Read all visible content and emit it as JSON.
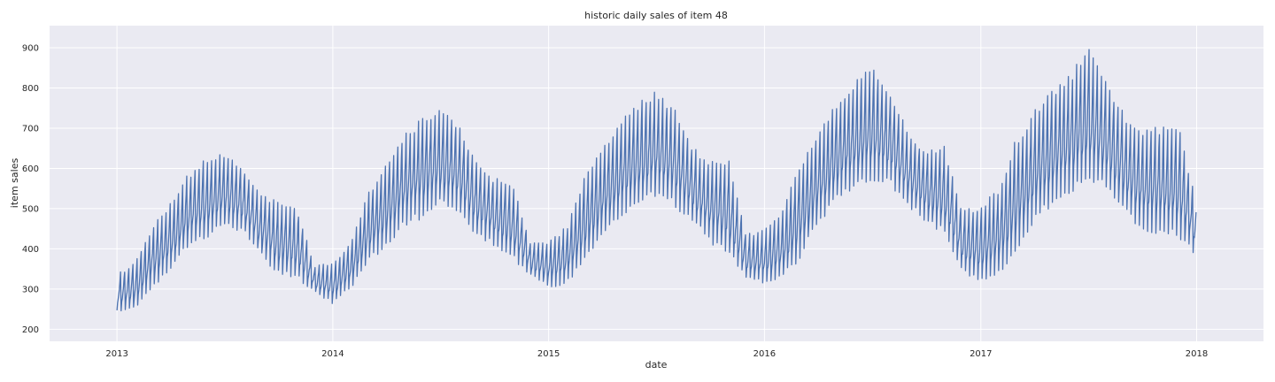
{
  "chart_data": {
    "type": "line",
    "title": "historic daily sales of item 48",
    "xlabel": "date",
    "ylabel": "item sales",
    "xlim": [
      "2012-09-09",
      "2018-04-24"
    ],
    "ylim": [
      170,
      955
    ],
    "x_ticks": [
      "2013",
      "2014",
      "2015",
      "2016",
      "2017",
      "2018"
    ],
    "y_ticks": [
      200,
      300,
      400,
      500,
      600,
      700,
      800,
      900
    ],
    "grid": true,
    "legend": "none",
    "series": [
      {
        "color": "#4c72b0",
        "x_start": "2013-01-01",
        "x_end": "2017-12-31",
        "frequency": "daily",
        "weekly_envelope": {
          "dates": [
            "2013-01-01",
            "2013-02-01",
            "2013-03-01",
            "2013-04-01",
            "2013-05-01",
            "2013-06-01",
            "2013-07-01",
            "2013-08-01",
            "2013-09-01",
            "2013-10-01",
            "2013-11-01",
            "2013-12-01",
            "2014-01-01",
            "2014-02-01",
            "2014-03-01",
            "2014-04-01",
            "2014-05-01",
            "2014-06-01",
            "2014-07-01",
            "2014-08-01",
            "2014-09-01",
            "2014-10-01",
            "2014-11-01",
            "2014-12-01",
            "2015-01-01",
            "2015-02-01",
            "2015-03-01",
            "2015-04-01",
            "2015-05-01",
            "2015-06-01",
            "2015-07-01",
            "2015-08-01",
            "2015-09-01",
            "2015-10-01",
            "2015-11-01",
            "2015-12-01",
            "2016-01-01",
            "2016-02-01",
            "2016-03-01",
            "2016-04-01",
            "2016-05-01",
            "2016-06-01",
            "2016-07-01",
            "2016-08-01",
            "2016-09-01",
            "2016-10-01",
            "2016-11-01",
            "2016-12-01",
            "2017-01-01",
            "2017-02-01",
            "2017-03-01",
            "2017-04-01",
            "2017-05-01",
            "2017-06-01",
            "2017-07-01",
            "2017-08-01",
            "2017-09-01",
            "2017-10-01",
            "2017-12-01",
            "2017-12-31"
          ],
          "low": [
            240,
            250,
            300,
            340,
            400,
            420,
            450,
            440,
            380,
            330,
            320,
            290,
            260,
            300,
            360,
            400,
            450,
            470,
            500,
            480,
            430,
            400,
            370,
            330,
            300,
            310,
            360,
            420,
            470,
            500,
            520,
            500,
            460,
            410,
            380,
            320,
            310,
            320,
            370,
            450,
            510,
            540,
            560,
            550,
            500,
            460,
            430,
            340,
            310,
            330,
            380,
            460,
            500,
            530,
            560,
            540,
            480,
            440,
            420,
            380
          ],
          "high": [
            340,
            370,
            460,
            520,
            590,
            630,
            640,
            610,
            540,
            520,
            510,
            360,
            370,
            420,
            540,
            620,
            690,
            730,
            760,
            720,
            620,
            580,
            570,
            420,
            420,
            460,
            580,
            660,
            720,
            770,
            800,
            760,
            660,
            620,
            630,
            440,
            450,
            500,
            620,
            700,
            770,
            820,
            860,
            800,
            690,
            650,
            660,
            500,
            510,
            560,
            680,
            750,
            800,
            840,
            910,
            820,
            740,
            700,
            720,
            520
          ]
        }
      }
    ]
  }
}
